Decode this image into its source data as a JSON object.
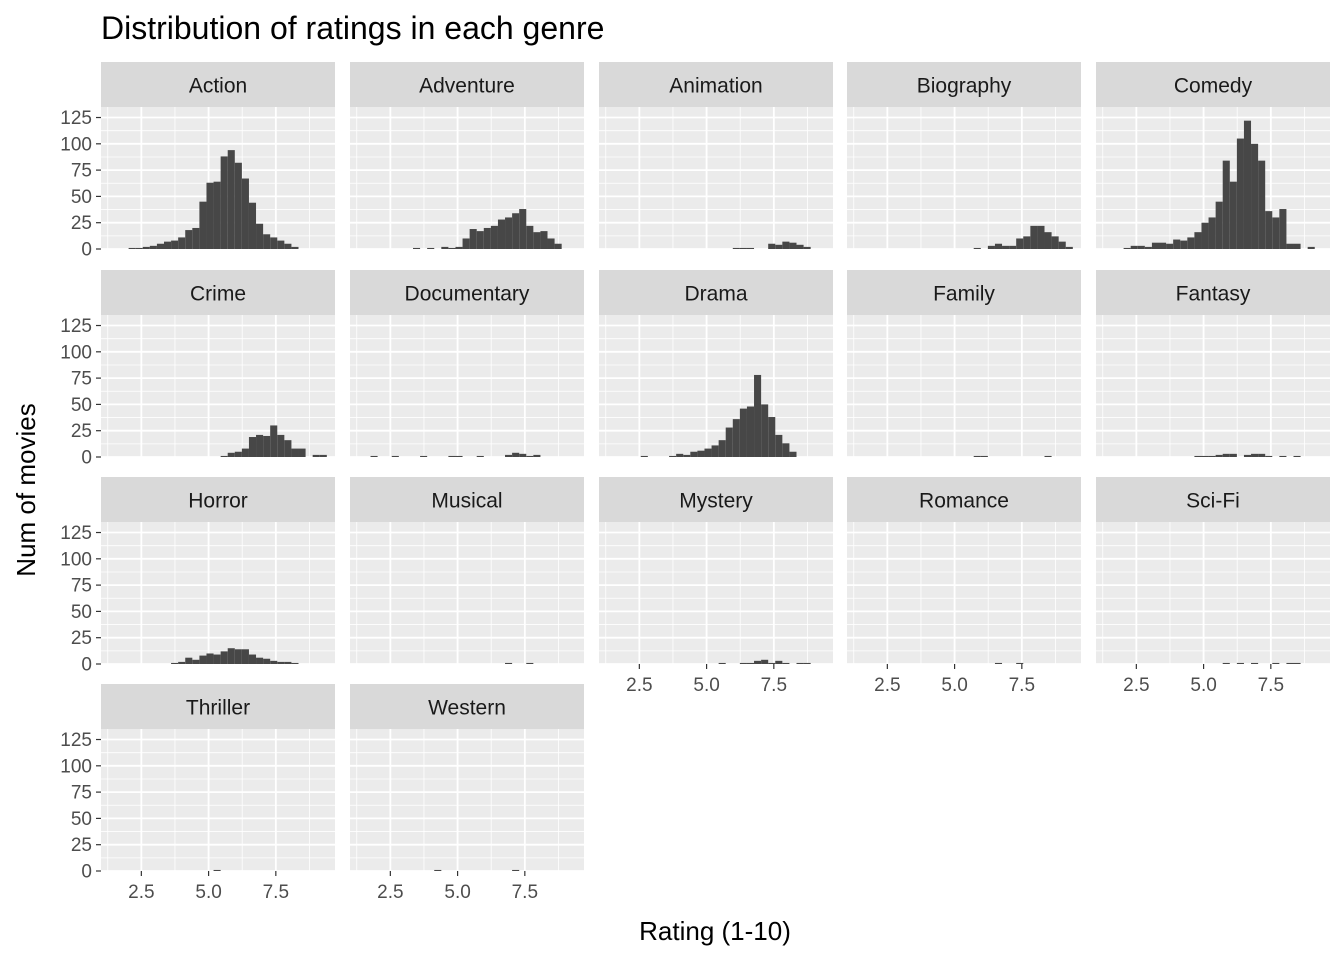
{
  "chart_data": {
    "type": "bar",
    "title": "Distribution of ratings in each genre",
    "xlabel": "Rating (1-10)",
    "ylabel": "Num of movies",
    "xlim": [
      1.0,
      9.7
    ],
    "ylim": [
      0,
      135
    ],
    "x_ticks": [
      "2.5",
      "5.0",
      "7.5"
    ],
    "y_ticks": [
      "0",
      "25",
      "50",
      "75",
      "100",
      "125"
    ],
    "bin_start": 1.5,
    "bin_width": 0.2632,
    "grid": true,
    "colors": {
      "bar": "#474747",
      "panel": "#ebebeb",
      "grid": "#ffffff",
      "strip": "#d9d9d9"
    },
    "panels": [
      {
        "name": "Action",
        "counts": [
          0,
          0,
          1,
          1,
          2,
          3,
          5,
          7,
          8,
          11,
          18,
          20,
          45,
          63,
          64,
          88,
          94,
          82,
          67,
          44,
          24,
          14,
          11,
          8,
          5,
          2,
          0,
          0,
          0,
          0
        ]
      },
      {
        "name": "Adventure",
        "counts": [
          0,
          0,
          0,
          0,
          0,
          0,
          0,
          1,
          0,
          1,
          0,
          2,
          1,
          2,
          10,
          19,
          17,
          20,
          22,
          28,
          30,
          34,
          38,
          22,
          16,
          17,
          10,
          5,
          0,
          0
        ]
      },
      {
        "name": "Animation",
        "counts": [
          0,
          0,
          0,
          0,
          0,
          0,
          0,
          0,
          0,
          0,
          0,
          0,
          0,
          0,
          0,
          0,
          0,
          1,
          1,
          1,
          0,
          0,
          5,
          4,
          7,
          6,
          4,
          2,
          0,
          0
        ]
      },
      {
        "name": "Biography",
        "counts": [
          0,
          0,
          0,
          0,
          0,
          0,
          0,
          0,
          0,
          0,
          0,
          0,
          0,
          0,
          0,
          0,
          1,
          0,
          3,
          5,
          3,
          3,
          10,
          12,
          22,
          22,
          16,
          12,
          7,
          2
        ]
      },
      {
        "name": "Comedy",
        "counts": [
          0,
          0,
          1,
          3,
          3,
          2,
          6,
          6,
          5,
          9,
          8,
          11,
          16,
          25,
          30,
          45,
          84,
          64,
          105,
          122,
          100,
          84,
          36,
          30,
          38,
          5,
          5,
          0,
          2,
          0
        ]
      },
      {
        "name": "Crime",
        "counts": [
          0,
          0,
          0,
          0,
          0,
          0,
          0,
          0,
          0,
          0,
          0,
          0,
          0,
          0,
          0,
          1,
          4,
          5,
          8,
          19,
          21,
          20,
          30,
          21,
          16,
          8,
          8,
          0,
          2,
          2
        ]
      },
      {
        "name": "Documentary",
        "counts": [
          0,
          1,
          0,
          0,
          1,
          0,
          0,
          0,
          1,
          0,
          0,
          0,
          1,
          1,
          0,
          0,
          1,
          0,
          0,
          0,
          2,
          4,
          3,
          1,
          2,
          0,
          0,
          0,
          0,
          0
        ]
      },
      {
        "name": "Drama",
        "counts": [
          0,
          0,
          0,
          0,
          1,
          0,
          0,
          0,
          1,
          3,
          2,
          5,
          6,
          8,
          11,
          16,
          28,
          36,
          46,
          48,
          78,
          50,
          38,
          21,
          13,
          5,
          0,
          0,
          0,
          0
        ]
      },
      {
        "name": "Family",
        "counts": [
          0,
          0,
          0,
          0,
          0,
          0,
          0,
          0,
          0,
          0,
          0,
          0,
          0,
          0,
          0,
          0,
          1,
          1,
          0,
          0,
          0,
          0,
          0,
          0,
          0,
          0,
          1,
          0,
          0,
          0
        ]
      },
      {
        "name": "Fantasy",
        "counts": [
          0,
          0,
          0,
          0,
          0,
          0,
          0,
          0,
          0,
          0,
          0,
          0,
          1,
          1,
          1,
          2,
          3,
          3,
          0,
          2,
          3,
          3,
          1,
          0,
          1,
          0,
          1,
          0,
          0,
          0
        ]
      },
      {
        "name": "Horror",
        "counts": [
          0,
          0,
          0,
          0,
          0,
          0,
          0,
          0,
          1,
          2,
          6,
          4,
          8,
          10,
          9,
          12,
          15,
          14,
          14,
          9,
          6,
          5,
          3,
          2,
          2,
          1,
          0,
          0,
          0,
          0
        ]
      },
      {
        "name": "Musical",
        "counts": [
          0,
          0,
          0,
          0,
          0,
          0,
          0,
          0,
          0,
          0,
          0,
          0,
          0,
          0,
          0,
          0,
          0,
          0,
          0,
          0,
          1,
          0,
          0,
          1,
          0,
          0,
          0,
          0,
          0,
          0
        ]
      },
      {
        "name": "Mystery",
        "counts": [
          0,
          0,
          0,
          0,
          0,
          0,
          0,
          0,
          0,
          0,
          0,
          0,
          0,
          0,
          0,
          1,
          0,
          0,
          1,
          1,
          3,
          4,
          1,
          3,
          1,
          0,
          1,
          1,
          0,
          0
        ]
      },
      {
        "name": "Romance",
        "counts": [
          0,
          0,
          0,
          0,
          0,
          0,
          0,
          0,
          0,
          0,
          0,
          0,
          0,
          0,
          0,
          0,
          0,
          0,
          0,
          1,
          0,
          0,
          1,
          0,
          0,
          0,
          0,
          0,
          0,
          0
        ]
      },
      {
        "name": "Sci-Fi",
        "counts": [
          0,
          0,
          0,
          0,
          0,
          0,
          0,
          0,
          0,
          0,
          0,
          0,
          0,
          0,
          0,
          0,
          1,
          0,
          1,
          0,
          1,
          0,
          0,
          1,
          0,
          1,
          1,
          0,
          0,
          0
        ]
      },
      {
        "name": "Thriller",
        "counts": [
          0,
          0,
          0,
          0,
          0,
          0,
          0,
          0,
          0,
          0,
          0,
          0,
          0,
          0,
          1,
          0,
          0,
          0,
          0,
          0,
          0,
          0,
          0,
          0,
          0,
          0,
          0,
          0,
          0,
          0
        ]
      },
      {
        "name": "Western",
        "counts": [
          0,
          0,
          0,
          0,
          0,
          0,
          0,
          0,
          0,
          0,
          1,
          0,
          0,
          0,
          0,
          0,
          0,
          0,
          0,
          0,
          0,
          1,
          0,
          0,
          0,
          0,
          0,
          0,
          0,
          0
        ]
      }
    ]
  }
}
